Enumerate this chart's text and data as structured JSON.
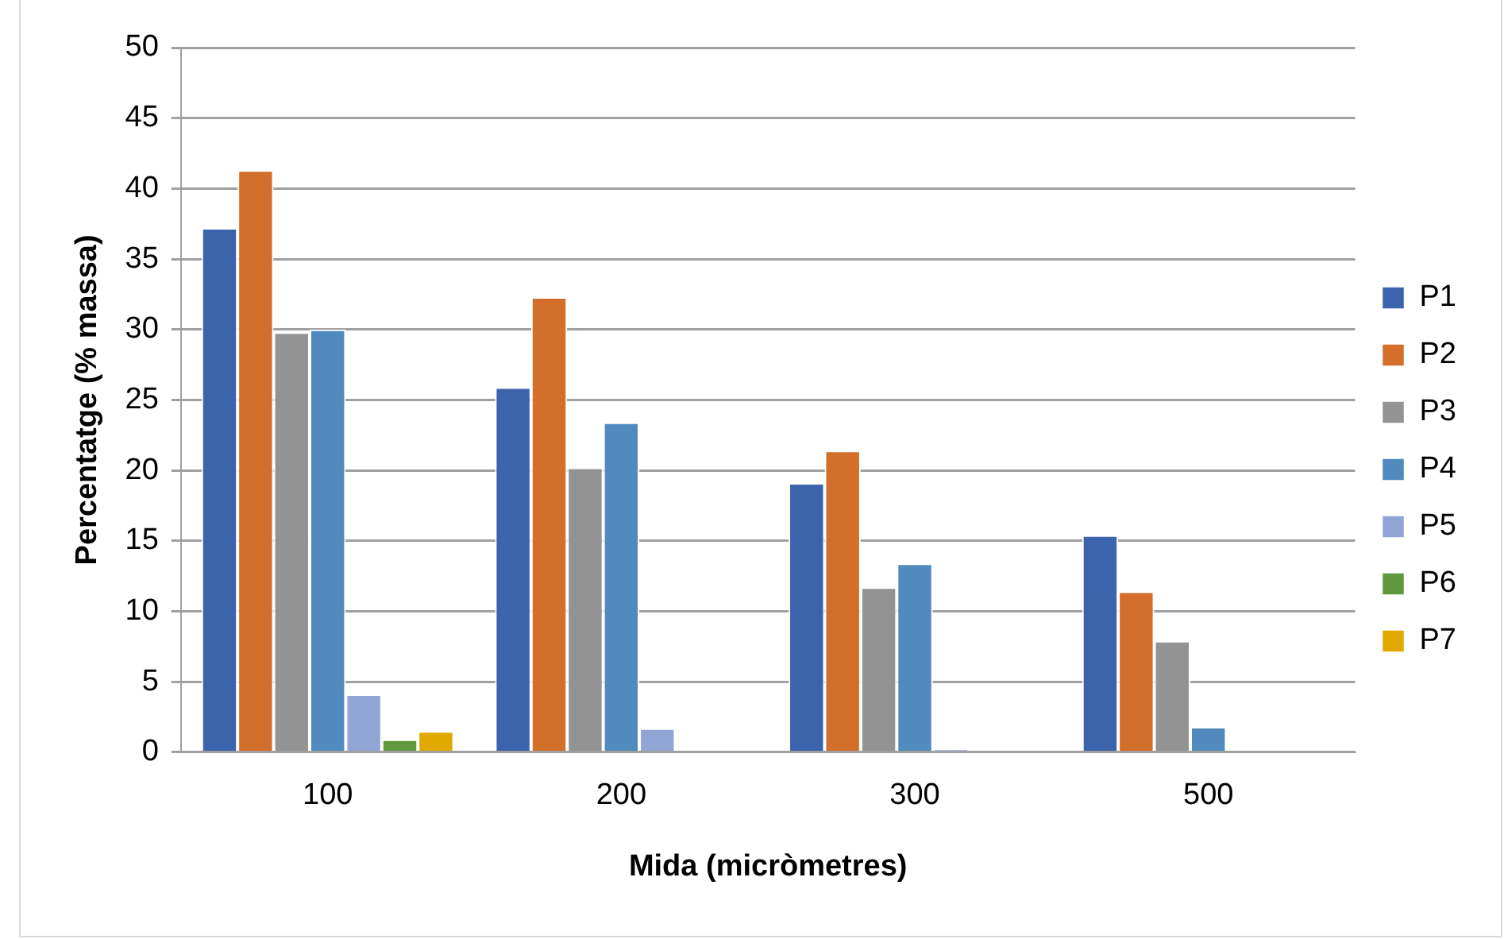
{
  "chart_data": {
    "type": "bar",
    "xlabel": "Mida (micròmetres)",
    "ylabel": "Percentatge (% massa)",
    "categories": [
      "100",
      "200",
      "300",
      "500"
    ],
    "series": [
      {
        "name": "P1",
        "color": "#3c64ad",
        "values": [
          37.2,
          25.9,
          19.1,
          15.4
        ]
      },
      {
        "name": "P2",
        "color": "#d46e2b",
        "values": [
          41.3,
          32.3,
          21.4,
          11.4
        ]
      },
      {
        "name": "P3",
        "color": "#939393",
        "values": [
          29.8,
          20.2,
          11.7,
          7.9
        ]
      },
      {
        "name": "P4",
        "color": "#508abe",
        "values": [
          30.0,
          23.4,
          13.4,
          1.8
        ]
      },
      {
        "name": "P5",
        "color": "#91a5d5",
        "values": [
          4.1,
          1.7,
          0.2,
          0
        ]
      },
      {
        "name": "P6",
        "color": "#62983d",
        "values": [
          0.9,
          0,
          0,
          0
        ]
      },
      {
        "name": "P7",
        "color": "#e1a900",
        "values": [
          1.5,
          0,
          0,
          0
        ]
      }
    ],
    "ylim": [
      0,
      50
    ],
    "yticks": [
      0,
      5,
      10,
      15,
      20,
      25,
      30,
      35,
      40,
      45,
      50
    ],
    "grid": "y",
    "legend": "right"
  }
}
